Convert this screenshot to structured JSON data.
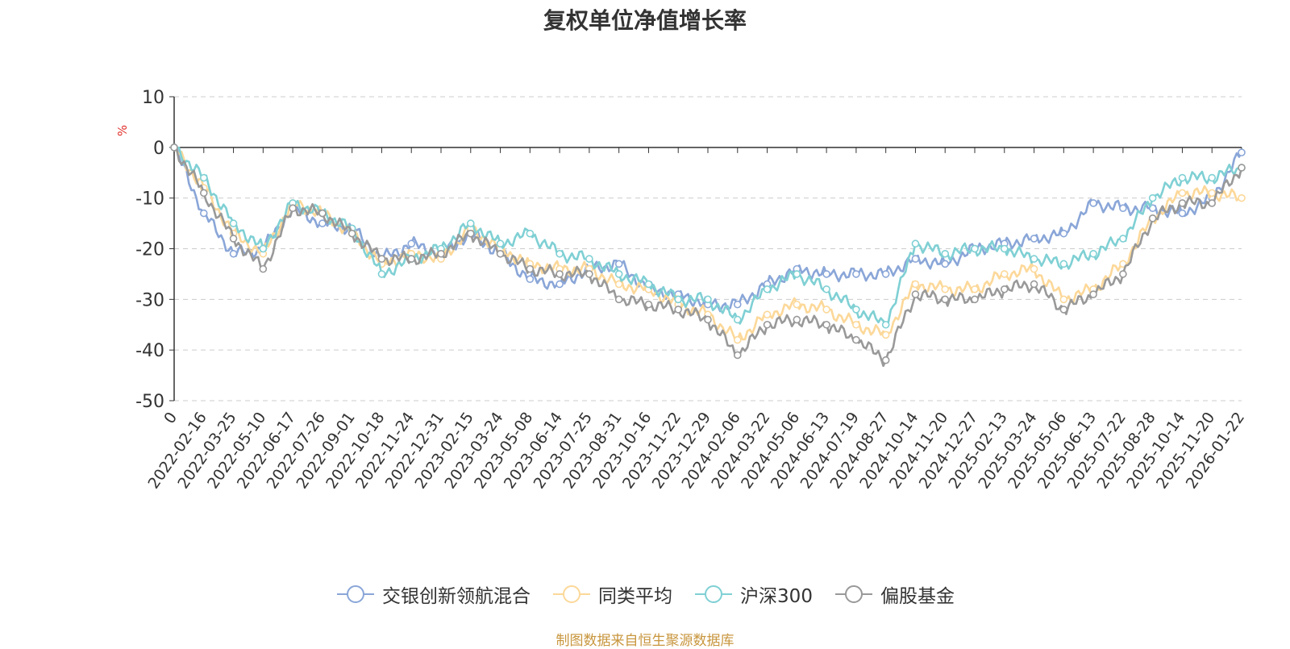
{
  "chart_data": {
    "type": "line",
    "title": "复权单位净值增长率",
    "ylabel": "%",
    "ylim": [
      -50,
      10
    ],
    "yticks": [
      10,
      0,
      -10,
      -20,
      -30,
      -40,
      -50
    ],
    "grid": true,
    "legend_position": "bottom-center",
    "source_note": "制图数据来自恒生聚源数据库",
    "x_tick_labels": [
      "0",
      "2022-02-16",
      "2022-03-25",
      "2022-05-10",
      "2022-06-17",
      "2022-07-26",
      "2022-09-01",
      "2022-10-18",
      "2022-11-24",
      "2022-12-31",
      "2023-02-15",
      "2023-03-24",
      "2023-05-08",
      "2023-06-14",
      "2023-07-25",
      "2023-08-31",
      "2023-10-16",
      "2023-11-22",
      "2023-12-29",
      "2024-02-06",
      "2024-03-22",
      "2024-05-06",
      "2024-06-13",
      "2024-07-19",
      "2024-08-27",
      "2024-10-14",
      "2024-11-20",
      "2024-12-27",
      "2025-02-13",
      "2025-03-24",
      "2025-05-06",
      "2025-06-13",
      "2025-07-22",
      "2025-08-28",
      "2025-10-14",
      "2025-11-20",
      "2026-01-22"
    ],
    "series": [
      {
        "name": "交银创新领航混合",
        "color": "#8aa6d8",
        "values": [
          0,
          -13,
          -21,
          -20,
          -12,
          -15,
          -16,
          -22,
          -19,
          -21,
          -17,
          -21,
          -26,
          -27,
          -24,
          -23,
          -28,
          -29,
          -31,
          -31,
          -27,
          -24,
          -25,
          -25,
          -25,
          -22,
          -23,
          -20,
          -19,
          -18,
          -17,
          -11,
          -12,
          -12,
          -13,
          -10,
          -1
        ]
      },
      {
        "name": "同类平均",
        "color": "#fcd899",
        "values": [
          0,
          -8,
          -17,
          -21,
          -11,
          -13,
          -17,
          -23,
          -21,
          -22,
          -16,
          -20,
          -23,
          -24,
          -24,
          -27,
          -28,
          -31,
          -33,
          -38,
          -33,
          -31,
          -32,
          -35,
          -37,
          -27,
          -28,
          -28,
          -25,
          -24,
          -30,
          -28,
          -23,
          -14,
          -9,
          -9,
          -10
        ]
      },
      {
        "name": "沪深300",
        "color": "#7fd0d4",
        "values": [
          0,
          -6,
          -15,
          -20,
          -11,
          -13,
          -16,
          -25,
          -22,
          -20,
          -15,
          -19,
          -17,
          -21,
          -22,
          -25,
          -27,
          -30,
          -30,
          -34,
          -28,
          -25,
          -28,
          -32,
          -35,
          -19,
          -21,
          -20,
          -20,
          -22,
          -23,
          -21,
          -18,
          -10,
          -6,
          -6,
          -4
        ]
      },
      {
        "name": "偏股基金",
        "color": "#999999",
        "values": [
          0,
          -9,
          -18,
          -24,
          -12,
          -13,
          -17,
          -22,
          -22,
          -21,
          -17,
          -21,
          -24,
          -25,
          -25,
          -30,
          -31,
          -32,
          -34,
          -41,
          -35,
          -34,
          -35,
          -38,
          -42,
          -29,
          -30,
          -30,
          -28,
          -27,
          -32,
          -29,
          -25,
          -14,
          -11,
          -11,
          -4
        ]
      }
    ]
  }
}
